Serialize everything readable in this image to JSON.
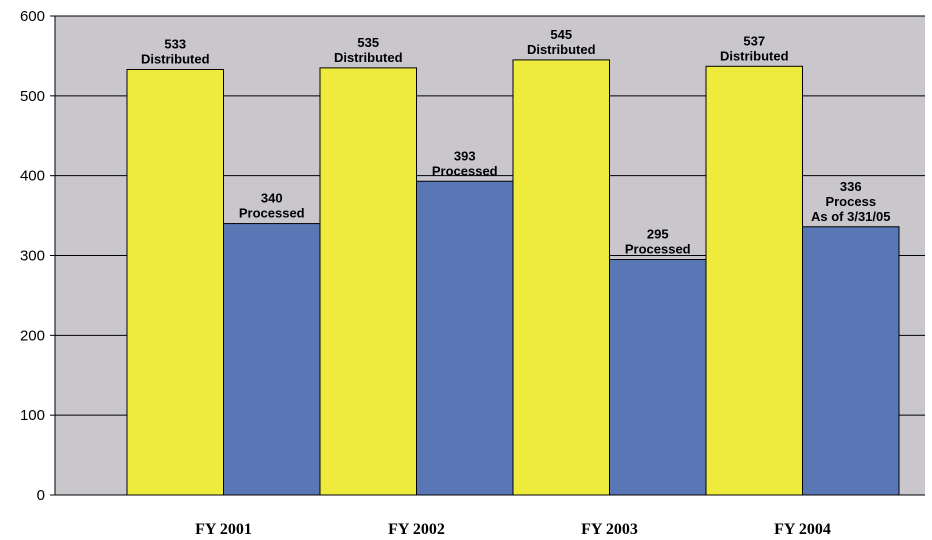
{
  "chart_data": {
    "type": "bar",
    "categories": [
      "FY 2001",
      "FY 2002",
      "FY 2003",
      "FY 2004"
    ],
    "series": [
      {
        "color": "#EFEB3C",
        "values": [
          533,
          535,
          545,
          537
        ],
        "labels": [
          [
            "533",
            "Distributed"
          ],
          [
            "535",
            "Distributed"
          ],
          [
            "545",
            "Distributed"
          ],
          [
            "537",
            "Distributed"
          ]
        ]
      },
      {
        "color": "#5877B4",
        "values": [
          340,
          393,
          295,
          336
        ],
        "labels": [
          [
            "340",
            "Processed"
          ],
          [
            "393",
            "Processed"
          ],
          [
            "295",
            "Processed"
          ],
          [
            "336",
            "Process",
            "As of 3/31/05"
          ]
        ]
      }
    ],
    "ylim": [
      0,
      600
    ],
    "yticks": [
      "0",
      "100",
      "200",
      "300",
      "400",
      "500",
      "600"
    ],
    "grid": true,
    "plot_background": "#C9C7CC",
    "legend": "none"
  }
}
